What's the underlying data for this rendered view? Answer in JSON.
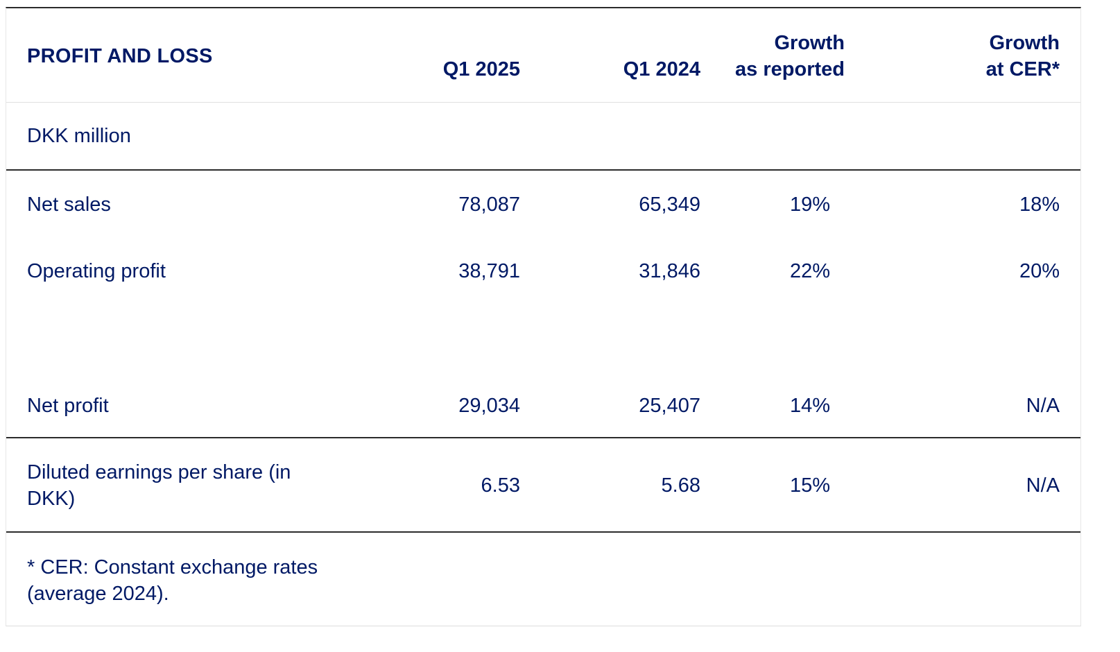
{
  "table": {
    "title": "PROFIT AND LOSS",
    "unit_label": "DKK million",
    "columns": {
      "q1_2025": "Q1 2025",
      "q1_2024": "Q1 2024",
      "growth_reported_line1": "Growth",
      "growth_reported_line2": "as reported",
      "growth_cer_line1": "Growth",
      "growth_cer_line2": "at CER*"
    },
    "rows": [
      {
        "label": "Net sales",
        "q1_2025": "78,087",
        "q1_2024": "65,349",
        "growth_reported": "19%",
        "growth_cer": "18%"
      },
      {
        "label": "Operating profit",
        "q1_2025": "38,791",
        "q1_2024": "31,846",
        "growth_reported": "22%",
        "growth_cer": "20%"
      },
      {
        "label": "Net profit",
        "q1_2025": "29,034",
        "q1_2024": "25,407",
        "growth_reported": "14%",
        "growth_cer": "N/A"
      },
      {
        "label": "Diluted earnings per share (in DKK)",
        "q1_2025": "6.53",
        "q1_2024": "5.68",
        "growth_reported": "15%",
        "growth_cer": "N/A"
      }
    ],
    "footnote": "* CER: Constant exchange rates (average 2024)."
  },
  "colors": {
    "text": "#001965",
    "rule_dark": "#2b2b2b",
    "rule_light": "#e0e0e0"
  }
}
